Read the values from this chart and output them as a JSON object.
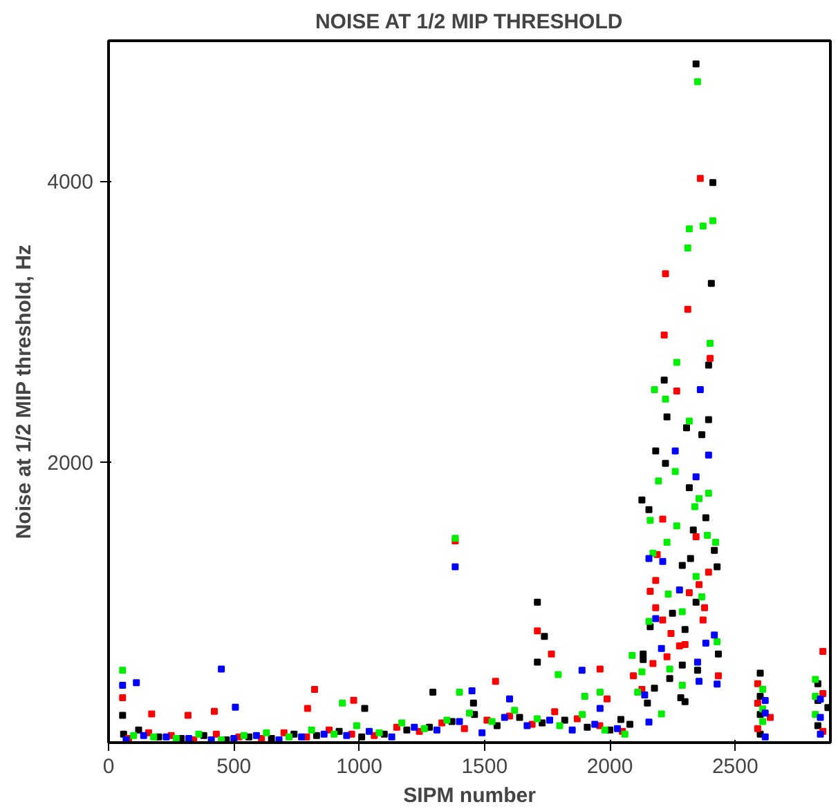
{
  "chart_data": {
    "type": "scatter",
    "title": "NOISE AT 1/2 MIP THRESHOLD",
    "xlabel": "SIPM number",
    "ylabel": "Noise at 1/2 MIP threshold, Hz",
    "xlim": [
      0,
      2880
    ],
    "ylim": [
      0,
      5000
    ],
    "xticks": [
      0,
      500,
      1000,
      1500,
      2000,
      2500
    ],
    "yticks": [
      2000,
      4000
    ],
    "grid": false,
    "marker": "square",
    "series": [
      {
        "color": "#000000",
        "x": [
          60,
          120,
          200,
          290,
          380,
          470,
          560,
          650,
          740,
          830,
          920,
          1010,
          1100,
          1190,
          1280,
          1370,
          1460,
          1550,
          1640,
          1730,
          1820,
          1910,
          2000,
          2080,
          56,
          1022,
          1294,
          1456,
          1711,
          1739,
          1711,
          2044,
          2344,
          2411,
          2405,
          2394,
          2217,
          2228,
          2394,
          2306,
          2367,
          2183,
          2222,
          2317,
          2128,
          2156,
          2383,
          2333,
          2417,
          2322,
          2289,
          2428,
          2344,
          2250,
          2161,
          2300,
          2433,
          2133,
          2133,
          2289,
          2350,
          2239,
          2283,
          2300,
          2178,
          2150,
          2600,
          2600,
          2600,
          2600,
          2830,
          2830,
          2830,
          2870
        ],
        "values": [
          60,
          90,
          40,
          30,
          50,
          20,
          40,
          30,
          60,
          50,
          80,
          40,
          60,
          90,
          110,
          150,
          200,
          120,
          180,
          140,
          160,
          110,
          90,
          130,
          194,
          243,
          359,
          282,
          1000,
          757,
          573,
          165,
          4835,
          3990,
          3272,
          2689,
          2583,
          2320,
          2301,
          2243,
          2194,
          2078,
          1990,
          1816,
          1728,
          1660,
          1602,
          1515,
          1369,
          1311,
          1262,
          1252,
          1000,
          922,
          825,
          806,
          631,
          631,
          592,
          553,
          515,
          456,
          320,
          291,
          388,
          282,
          60,
          200,
          330,
          495,
          120,
          300,
          420,
          250
        ]
      },
      {
        "color": "#ff0000",
        "x": [
          80,
          160,
          250,
          340,
          430,
          520,
          610,
          700,
          790,
          880,
          970,
          1060,
          1150,
          1240,
          1330,
          1420,
          1510,
          1600,
          1690,
          1780,
          1870,
          1960,
          2050,
          1383,
          1711,
          1767,
          56,
          172,
          317,
          822,
          422,
          794,
          978,
          1544,
          1961,
          1989,
          2361,
          2222,
          2311,
          2217,
          2400,
          2267,
          2211,
          2344,
          2189,
          2394,
          2183,
          2356,
          2161,
          2317,
          2183,
          2378,
          2372,
          2211,
          2244,
          2300,
          2278,
          2228,
          2172,
          2433,
          2094,
          2128,
          2590,
          2590,
          2590,
          2640,
          2850,
          2850,
          2850
        ],
        "values": [
          30,
          70,
          50,
          20,
          60,
          40,
          30,
          70,
          40,
          90,
          60,
          50,
          110,
          80,
          140,
          100,
          160,
          190,
          130,
          220,
          170,
          120,
          80,
          1437,
          796,
          631,
          320,
          204,
          194,
          379,
          223,
          243,
          301,
          437,
          524,
          311,
          4019,
          3340,
          3087,
          2903,
          2738,
          2505,
          1592,
          1466,
          1340,
          1214,
          1155,
          1126,
          1078,
          1068,
          961,
          961,
          874,
          874,
          777,
          699,
          689,
          612,
          563,
          476,
          476,
          379,
          100,
          280,
          420,
          180,
          80,
          350,
          650
        ]
      },
      {
        "color": "#00ee00",
        "x": [
          100,
          180,
          270,
          360,
          450,
          540,
          630,
          720,
          810,
          900,
          990,
          1080,
          1170,
          1260,
          1350,
          1440,
          1530,
          1620,
          1710,
          1800,
          1890,
          1980,
          2060,
          1383,
          56,
          933,
          1400,
          1794,
          1961,
          1900,
          2350,
          2411,
          2372,
          2317,
          2311,
          2400,
          2267,
          2178,
          2222,
          2317,
          2261,
          2194,
          2394,
          2356,
          2339,
          2161,
          2267,
          2389,
          2228,
          2422,
          2172,
          2344,
          2367,
          2233,
          2289,
          2156,
          2428,
          2089,
          2239,
          2128,
          2289,
          2206,
          2111,
          2610,
          2610,
          2610,
          2820,
          2820,
          2820
        ],
        "values": [
          50,
          40,
          30,
          60,
          20,
          50,
          70,
          40,
          90,
          60,
          120,
          70,
          140,
          100,
          160,
          210,
          150,
          230,
          170,
          120,
          200,
          90,
          60,
          1456,
          515,
          282,
          359,
          485,
          359,
          330,
          4709,
          3718,
          3680,
          3660,
          3524,
          2845,
          2709,
          2515,
          2447,
          2291,
          1932,
          1864,
          1777,
          1738,
          1680,
          1583,
          1544,
          1476,
          1427,
          1427,
          1350,
          1184,
          1039,
          1058,
          932,
          864,
          718,
          621,
          524,
          505,
          408,
          204,
          359,
          150,
          240,
          380,
          200,
          330,
          450
        ]
      },
      {
        "color": "#0000ff",
        "x": [
          70,
          140,
          230,
          320,
          410,
          500,
          590,
          680,
          770,
          860,
          950,
          1040,
          1130,
          1220,
          1310,
          1400,
          1490,
          1580,
          1670,
          1760,
          1850,
          1940,
          2030,
          1383,
          450,
          56,
          111,
          506,
          1450,
          1600,
          1889,
          1961,
          2361,
          2261,
          2394,
          2344,
          2211,
          2156,
          2278,
          2183,
          2417,
          2206,
          2383,
          2350,
          2356,
          2428,
          2139,
          2156,
          2620,
          2620,
          2620,
          2840,
          2840,
          2840
        ],
        "values": [
          20,
          50,
          40,
          30,
          20,
          30,
          50,
          20,
          40,
          60,
          50,
          80,
          40,
          110,
          90,
          150,
          70,
          180,
          120,
          160,
          90,
          130,
          100,
          1252,
          524,
          408,
          427,
          252,
          369,
          311,
          515,
          243,
          2515,
          2078,
          2049,
          1893,
          1291,
          1311,
          1087,
          883,
          767,
          670,
          709,
          573,
          437,
          417,
          340,
          146,
          40,
          210,
          300,
          60,
          180,
          310
        ]
      }
    ]
  }
}
